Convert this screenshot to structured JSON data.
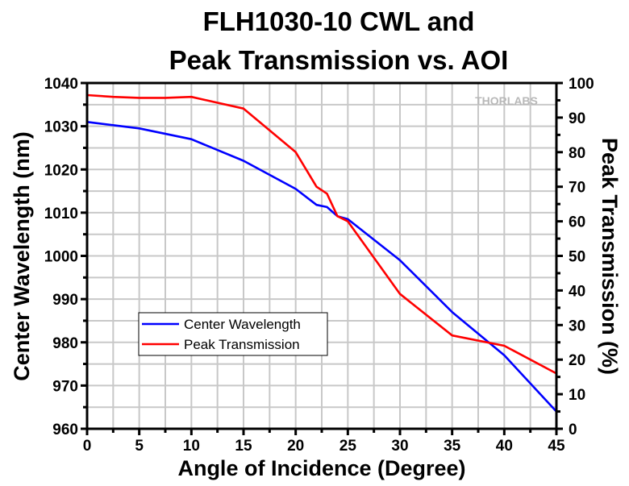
{
  "chart_data": {
    "type": "line",
    "title": [
      "FLH1030-10 CWL and",
      "Peak Transmission vs. AOI"
    ],
    "xlabel": "Angle of Incidence (Degree)",
    "ylabel": "Center Wavelength (nm)",
    "y2label": "Peak Transmission (%)",
    "xlim": [
      0,
      45
    ],
    "ylim": [
      960,
      1040
    ],
    "y2lim": [
      0,
      100
    ],
    "x_ticks": [
      "0",
      "5",
      "10",
      "15",
      "20",
      "25",
      "30",
      "35",
      "40",
      "45"
    ],
    "y_ticks": [
      "960",
      "970",
      "980",
      "990",
      "1000",
      "1010",
      "1020",
      "1030",
      "1040"
    ],
    "y2_ticks": [
      "0",
      "10",
      "20",
      "30",
      "40",
      "50",
      "60",
      "70",
      "80",
      "90",
      "100"
    ],
    "grid": true,
    "legend_position": "lower-left",
    "watermark": "THORLABS",
    "series": [
      {
        "name": "Center Wavelength",
        "axis": "left",
        "color": "#0000ff",
        "x": [
          0,
          5,
          10,
          15,
          20,
          22,
          23,
          24,
          25,
          30,
          35,
          40,
          45
        ],
        "y": [
          1031,
          1029.5,
          1027,
          1022,
          1015.5,
          1011.8,
          1011.3,
          1009.2,
          1008.5,
          999,
          987,
          977,
          964
        ]
      },
      {
        "name": "Peak Transmission",
        "axis": "right",
        "color": "#ff0000",
        "x": [
          0,
          2.5,
          5,
          7.5,
          10,
          15,
          20,
          22,
          23,
          24,
          25,
          30,
          35,
          40,
          45
        ],
        "y": [
          96.5,
          96,
          95.7,
          95.7,
          96,
          92.6,
          80,
          70,
          68,
          61.5,
          60,
          39,
          27,
          24,
          16
        ]
      }
    ]
  }
}
